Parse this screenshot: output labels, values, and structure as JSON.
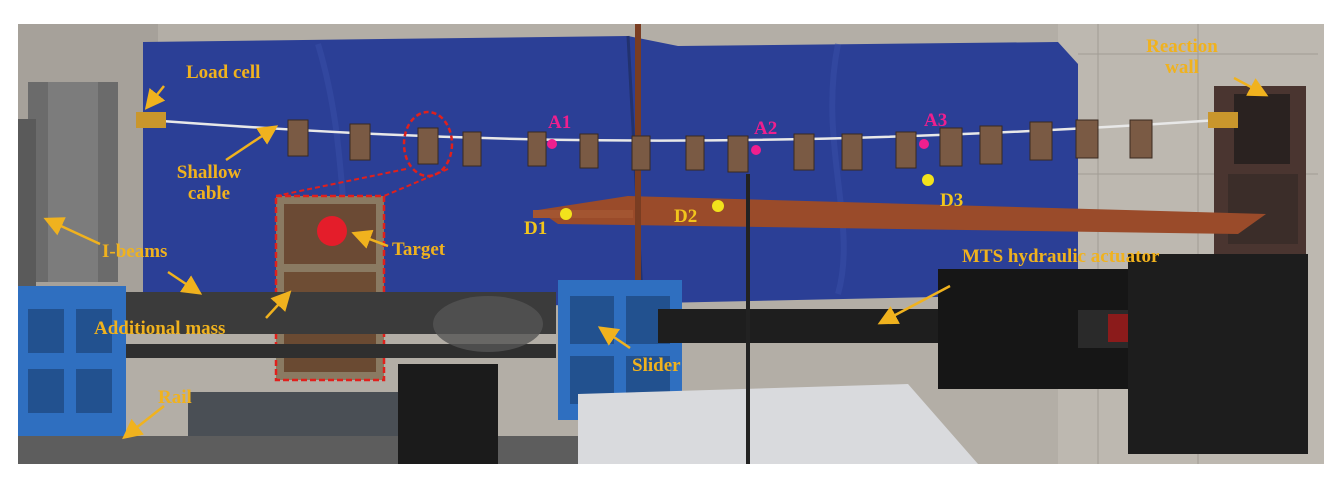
{
  "labels": {
    "load_cell": "Load cell",
    "reaction_wall": "Reaction\nwall",
    "shallow_cable": "Shallow\ncable",
    "i_beams": "I-beams",
    "target": "Target",
    "additional_mass": "Additional mass",
    "rail": "Rail",
    "slider": "Slider",
    "mts_actuator": "MTS hydraulic actuator",
    "accelerometers": [
      "A1",
      "A2",
      "A3"
    ],
    "displacement_points": [
      "D1",
      "D2",
      "D3"
    ]
  },
  "colors": {
    "label_gold": "#f0b21e",
    "accelerometer_marker": "#ef1f8e",
    "displacement_marker": "#f2c51c",
    "inset_border": "#e0201c",
    "tarp_blue": "#2b3f96",
    "steel_frame_blue": "#2f6fc0",
    "platform_rust": "#9a4b2a",
    "concrete_wall": "#b9b4ad"
  }
}
